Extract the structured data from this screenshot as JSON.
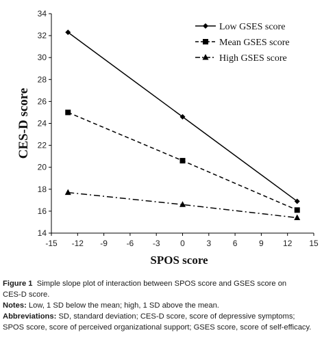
{
  "chart_data": {
    "type": "line",
    "title": "",
    "xlabel": "SPOS score",
    "ylabel": "CES-D score",
    "xlim": [
      -15,
      15
    ],
    "ylim": [
      14,
      34
    ],
    "xticks": [
      -15,
      -12,
      -9,
      -6,
      -3,
      0,
      3,
      6,
      9,
      12,
      15
    ],
    "yticks": [
      14,
      16,
      18,
      20,
      22,
      24,
      26,
      28,
      30,
      32,
      34
    ],
    "x": [
      -13.1,
      0,
      13.1
    ],
    "series": [
      {
        "name": "Low GSES score",
        "values": [
          32.3,
          24.6,
          16.9
        ],
        "marker": "diamond",
        "line": "solid"
      },
      {
        "name": "Mean GSES score",
        "values": [
          25.0,
          20.6,
          16.1
        ],
        "marker": "square",
        "line": "dashed"
      },
      {
        "name": "High GSES score",
        "values": [
          17.7,
          16.6,
          15.4
        ],
        "marker": "triangle",
        "line": "dash-dot"
      }
    ],
    "legend_position": "top-right",
    "grid": false,
    "colors": {
      "line": "#000000"
    }
  },
  "caption": {
    "figure_label": "Figure 1",
    "figure_text": "Simple slope plot of interaction between SPOS score and GSES score on",
    "figure_text_2": "CES-D score.",
    "notes_label": "Notes:",
    "notes_text": "Low, 1 SD below the mean; high, 1 SD above the mean.",
    "abbrev_label": "Abbreviations:",
    "abbrev_text": "SD, standard deviation; CES-D score, score of depressive symptoms;",
    "abbrev_text_2": "SPOS score, score of perceived organizational support; GSES score, score of self-efficacy."
  }
}
